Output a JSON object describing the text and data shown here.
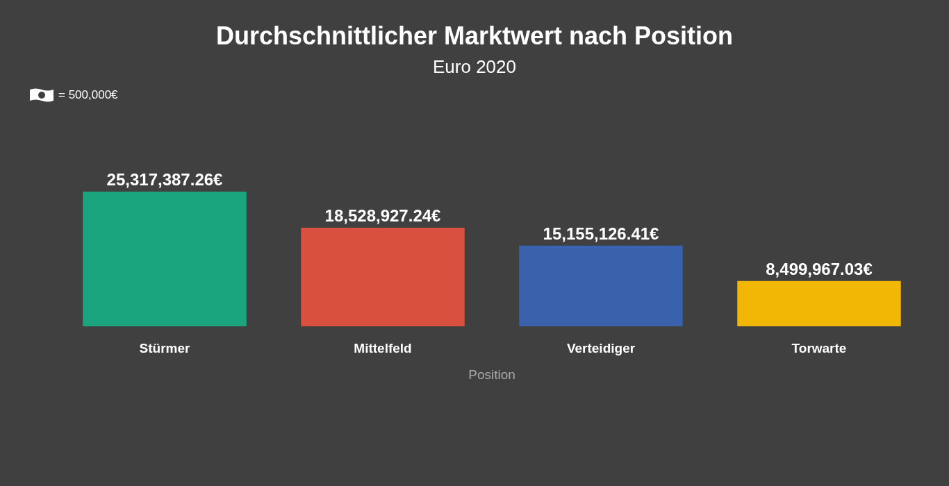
{
  "chart_data": {
    "type": "bar",
    "title": "Durchschnittlicher Marktwert nach Position",
    "subtitle": "Euro 2020",
    "xlabel": "Position",
    "categories": [
      "Stürmer",
      "Mittelfeld",
      "Verteidiger",
      "Torwarte"
    ],
    "values": [
      25317387.26,
      18528927.24,
      15155126.41,
      8499967.03
    ],
    "colors": [
      "#1aa57f",
      "#d9503f",
      "#3a62ac",
      "#f2b705"
    ],
    "value_labels": [
      "25,317,387.26€",
      "18,528,927.24€",
      "15,155,126.41€",
      "8,499,967.03€"
    ],
    "annotations": [
      "= 500,000€"
    ]
  }
}
